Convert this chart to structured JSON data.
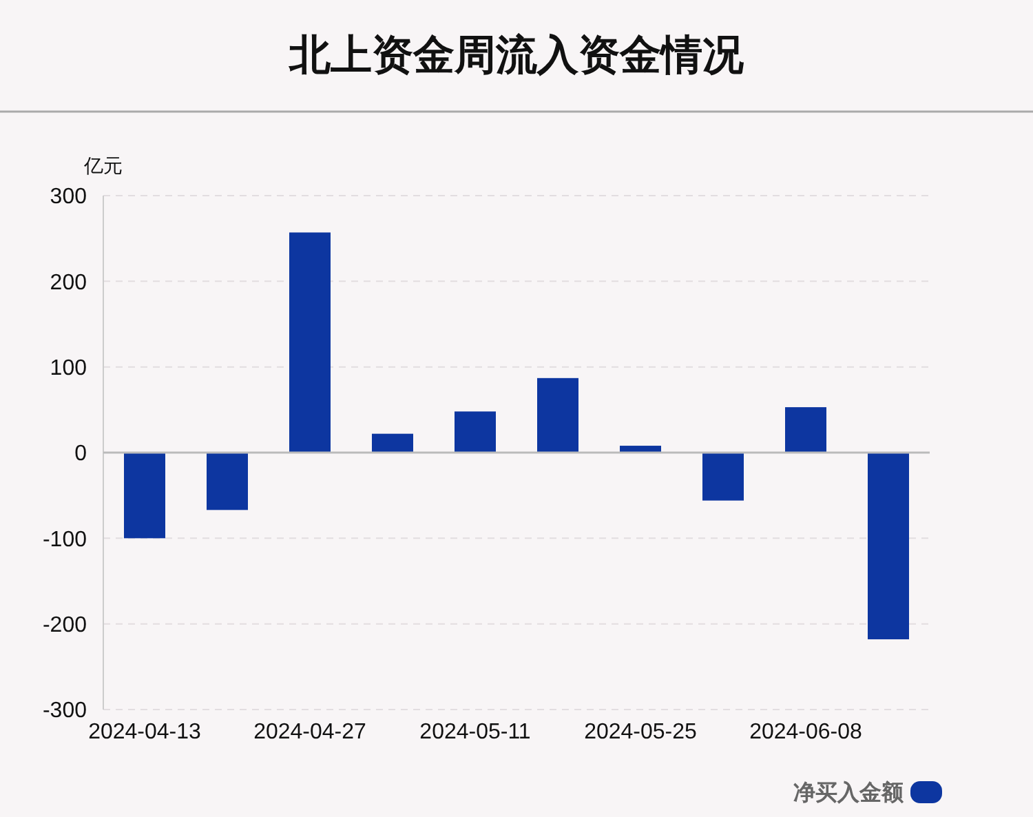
{
  "chart_data": {
    "type": "bar",
    "title": "北上资金周流入资金情况",
    "ylabel": "亿元",
    "categories": [
      "2024-04-13",
      null,
      "2024-04-27",
      null,
      "2024-05-11",
      null,
      "2024-05-25",
      null,
      "2024-06-08",
      null
    ],
    "series": [
      {
        "name": "净买入金额",
        "color": "#0d36a0",
        "values": [
          -100,
          -67,
          257,
          22,
          48,
          87,
          8,
          -56,
          53,
          -218
        ]
      }
    ],
    "ylim": [
      -300,
      300
    ],
    "yticks": [
      -300,
      -200,
      -100,
      0,
      100,
      200,
      300
    ],
    "grid": "y",
    "legend": "bottom right"
  }
}
